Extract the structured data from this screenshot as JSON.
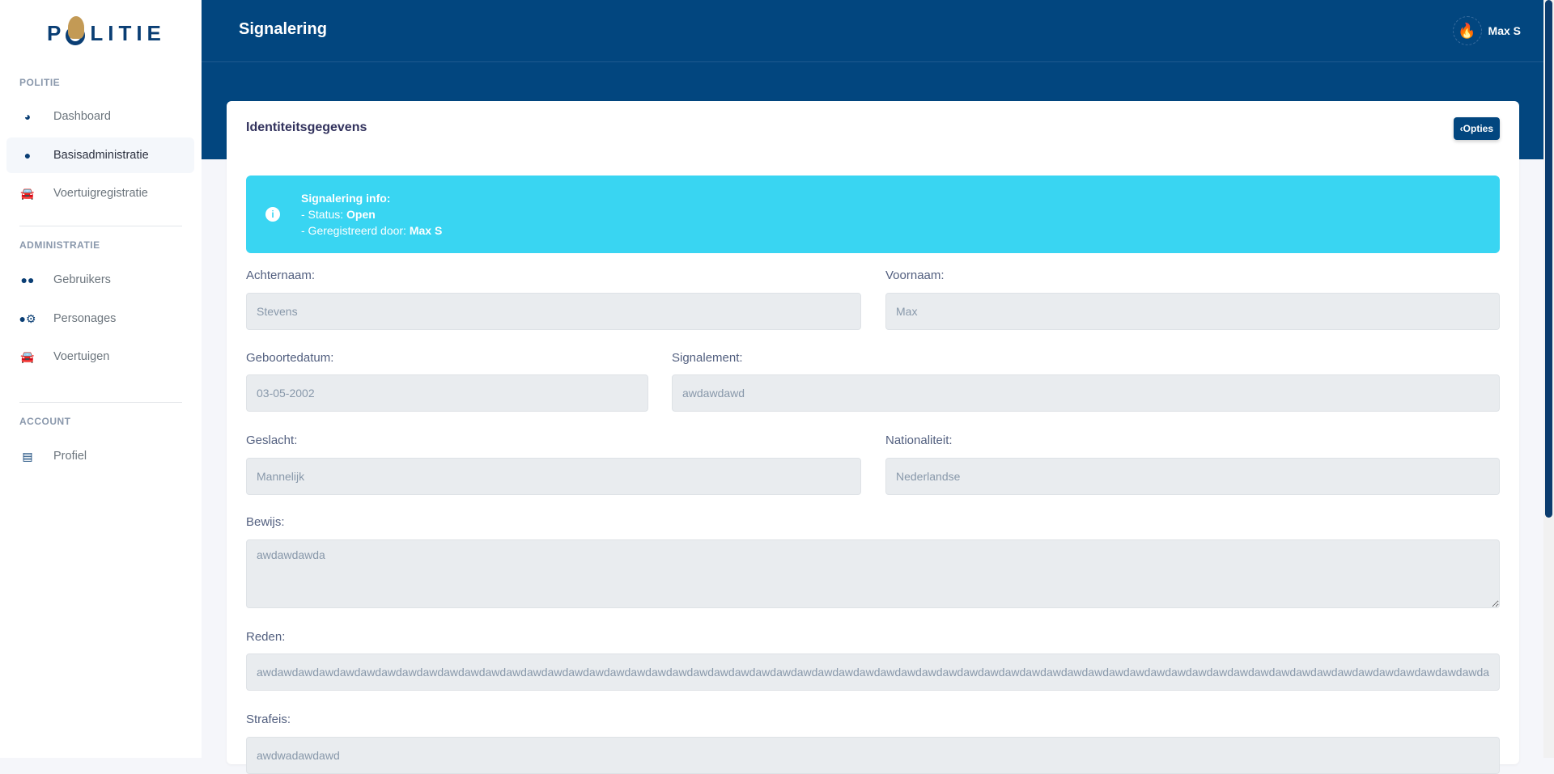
{
  "brand": {
    "logo_text": "POLITIE"
  },
  "sidebar": {
    "sections": [
      {
        "label": "POLITIE",
        "items": [
          {
            "label": "Dashboard",
            "icon": "pie-chart-icon"
          },
          {
            "label": "Basisadministratie",
            "icon": "user-icon",
            "active": true
          },
          {
            "label": "Voertuigregistratie",
            "icon": "car-icon"
          }
        ]
      },
      {
        "label": "ADMINISTRATIE",
        "items": [
          {
            "label": "Gebruikers",
            "icon": "users-icon"
          },
          {
            "label": "Personages",
            "icon": "user-cog-icon"
          },
          {
            "label": "Voertuigen",
            "icon": "car-icon"
          }
        ]
      },
      {
        "label": "ACCOUNT",
        "items": [
          {
            "label": "Profiel",
            "icon": "id-card-icon"
          }
        ]
      }
    ]
  },
  "header": {
    "title": "Signalering",
    "user_name": "Max S"
  },
  "card": {
    "title": "Identiteitsgegevens",
    "options_button": "Opties",
    "alert": {
      "heading": "Signalering info:",
      "status_label": "- Status: ",
      "status_value": "Open",
      "registered_label": "- Geregistreerd door: ",
      "registered_value": "Max S"
    },
    "fields": {
      "achternaam": {
        "label": "Achternaam:",
        "value": "Stevens"
      },
      "voornaam": {
        "label": "Voornaam:",
        "value": "Max"
      },
      "geboortedatum": {
        "label": "Geboortedatum:",
        "value": "03-05-2002"
      },
      "signalement": {
        "label": "Signalement:",
        "value": "awdawdawd"
      },
      "geslacht": {
        "label": "Geslacht:",
        "value": "Mannelijk"
      },
      "nationaliteit": {
        "label": "Nationaliteit:",
        "value": "Nederlandse"
      },
      "bewijs": {
        "label": "Bewijs:",
        "value": "awdawdawda"
      },
      "reden": {
        "label": "Reden:",
        "value": "awdawdawdawdawdawdawdawdawdawdawdawdawdawdawdawdawdawdawdawdawdawdawdawdawdawdawdawdawdawdawdawdawdawdawdawdawdawdawdawdawdawdawdawdawdawdawdawdawdawdawdawdawdawdawdawdawdawdawdawdawdawdawdawdawd"
      },
      "strafeis": {
        "label": "Strafeis:",
        "value": "awdwadawdawd"
      }
    }
  },
  "colors": {
    "primary": "#02467f",
    "info": "#39d5f2",
    "gold": "#c39a55"
  }
}
